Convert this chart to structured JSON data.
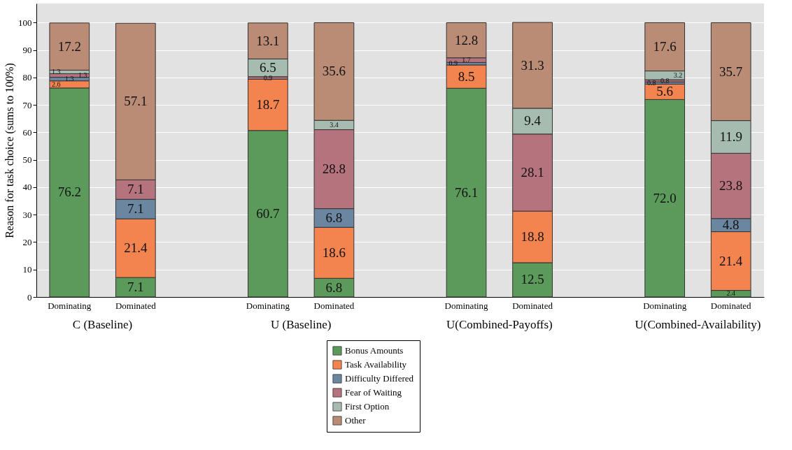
{
  "chart_data": {
    "type": "bar",
    "stacked": true,
    "ylabel": "Reason for task choice (sums to 100%)",
    "categories": [
      "Dominating",
      "Dominated",
      "Dominating",
      "Dominated",
      "Dominating",
      "Dominated",
      "Dominating",
      "Dominated"
    ],
    "annotations": [
      "C (Baseline)",
      "U (Baseline)",
      "U(Combined-Payoffs)",
      "U(Combined-Availability)"
    ],
    "series": [
      {
        "name": "Bonus Amounts",
        "color": "#5b9a5b",
        "values": [
          76.2,
          7.1,
          60.7,
          6.8,
          76.1,
          12.5,
          72.0,
          2.4
        ],
        "value_labels": [
          "76.2",
          "7.1",
          "60.7",
          "6.8",
          "76.1",
          "12.5",
          "72.0",
          "2.4"
        ]
      },
      {
        "name": "Task Availability",
        "color": "#f4844f",
        "values": [
          2.6,
          21.4,
          18.7,
          18.6,
          8.5,
          18.8,
          5.6,
          21.4
        ],
        "value_labels": [
          "2.6",
          "21.4",
          "18.7",
          "18.6",
          "8.5",
          "18.8",
          "5.6",
          "21.4"
        ]
      },
      {
        "name": "Difficulty Differed",
        "color": "#6a86a1",
        "values": [
          1.3,
          7.1,
          null,
          6.8,
          0.9,
          null,
          0.8,
          4.8
        ],
        "value_labels": [
          "1.3",
          "7.1",
          null,
          "6.8",
          "0.9",
          null,
          "0.8",
          "4.8"
        ]
      },
      {
        "name": "Fear of Waiting",
        "color": "#b5737e",
        "values": [
          1.3,
          7.1,
          0.9,
          28.8,
          1.7,
          28.1,
          0.8,
          23.8
        ],
        "value_labels": [
          "1.3",
          "7.1",
          "0.9",
          "28.8",
          "1.7",
          "28.1",
          "0.8",
          "23.8"
        ]
      },
      {
        "name": "First Option",
        "color": "#a6bcb1",
        "values": [
          1.3,
          null,
          6.5,
          3.4,
          null,
          9.4,
          3.2,
          11.9
        ],
        "value_labels": [
          "1.3",
          null,
          "6.5",
          "3.4",
          null,
          "9.4",
          "3.2",
          "11.9"
        ]
      },
      {
        "name": "Other",
        "color": "#ba8b75",
        "values": [
          17.2,
          57.1,
          13.1,
          35.6,
          12.8,
          31.3,
          17.6,
          35.7
        ],
        "value_labels": [
          "17.2",
          "57.1",
          "13.1",
          "35.6",
          "12.8",
          "31.3",
          "17.6",
          "35.7"
        ]
      }
    ],
    "ylim": [
      0,
      107
    ],
    "yticks": [
      0,
      10,
      20,
      30,
      40,
      50,
      60,
      70,
      80,
      90,
      100
    ],
    "grid": "y",
    "legend": "bottom"
  }
}
